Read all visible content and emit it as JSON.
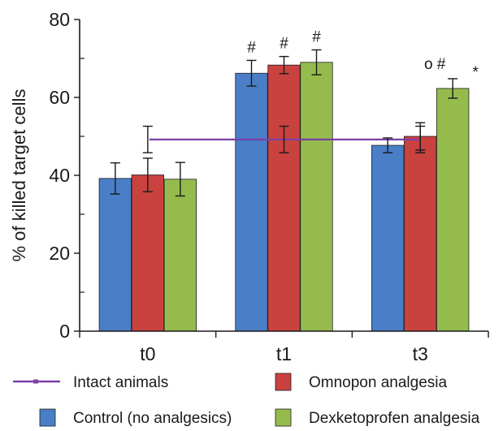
{
  "chart_data": {
    "type": "bar",
    "title": "",
    "xlabel": "",
    "ylabel": "% of killed target cells",
    "ylim": [
      0,
      80
    ],
    "yticks": [
      0,
      20,
      40,
      60,
      80
    ],
    "categories": [
      "t0",
      "t1",
      "t3"
    ],
    "grid": false,
    "legend_position": "bottom",
    "series": [
      {
        "name": "Control (no analgesics)",
        "color": "#4a7ec6",
        "values": [
          39.2,
          66.2,
          47.7
        ],
        "errors": [
          4.0,
          3.3,
          1.9
        ]
      },
      {
        "name": "Omnopon analgesia",
        "color": "#c9423f",
        "values": [
          40.1,
          68.3,
          50.0
        ],
        "errors": [
          4.3,
          2.2,
          3.5
        ]
      },
      {
        "name": "Dexketoprofen analgesia",
        "color": "#96bb4d",
        "values": [
          39.0,
          69.0,
          62.3
        ],
        "errors": [
          4.3,
          3.2,
          2.5
        ]
      }
    ],
    "reference_line": {
      "name": "Intact animals",
      "color": "#7b3fa8",
      "value": 49.2,
      "error": 3.4
    },
    "annotations": [
      {
        "category": "t1",
        "series": 0,
        "text": "#"
      },
      {
        "category": "t1",
        "series": 1,
        "text": "#"
      },
      {
        "category": "t1",
        "series": 2,
        "text": "#"
      },
      {
        "category": "t3",
        "series": 2,
        "text": "o #"
      },
      {
        "category": "t3",
        "series": 2,
        "text": "*"
      }
    ]
  }
}
